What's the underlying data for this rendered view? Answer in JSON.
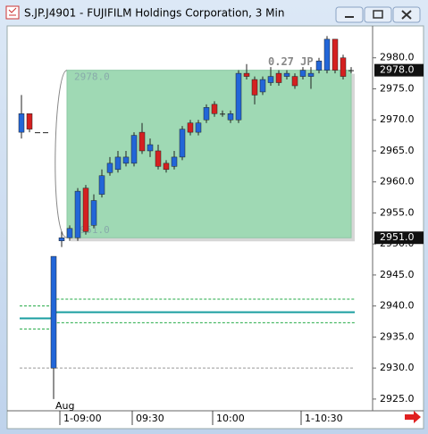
{
  "window": {
    "title": "S.JP.J4901 - FUJIFILM Holdings Corporation, 3 Min"
  },
  "chart_data": {
    "type": "candlestick",
    "categories": [
      null,
      null,
      null,
      null,
      null,
      "1-09:00",
      null,
      null,
      null,
      null,
      null,
      null,
      null,
      null,
      "09:30",
      null,
      null,
      null,
      null,
      null,
      null,
      null,
      null,
      null,
      "10:00",
      null,
      null,
      null,
      null,
      null,
      null,
      null,
      null,
      null,
      null,
      "1-10:30",
      null,
      null,
      null,
      null,
      null,
      null
    ],
    "x_sublabel": "Aug",
    "open": [
      2968,
      2971,
      2968,
      2968,
      2930,
      2950.5,
      2951,
      2951,
      2959,
      2953,
      2958,
      2961.5,
      2962,
      2963,
      2963,
      2968,
      2965,
      2965,
      2963,
      2962.5,
      2964,
      2969.5,
      2968,
      2970,
      2972.5,
      2971,
      2970,
      2970,
      2977.5,
      2976.5,
      2974.5,
      2976,
      2977.5,
      2977,
      2977,
      2977,
      2977,
      2978,
      2978,
      2983,
      2980,
      2978
    ],
    "high": [
      2974,
      2971,
      2968,
      2968,
      2948,
      2952,
      2953,
      2959,
      2959.5,
      2958,
      2962,
      2964,
      2965,
      2965,
      2968,
      2969.5,
      2967,
      2966,
      2963.5,
      2965,
      2969,
      2970,
      2970,
      2972.5,
      2973,
      2971.5,
      2971.5,
      2978,
      2979,
      2977,
      2977,
      2978.5,
      2978,
      2978,
      2977.5,
      2978.5,
      2978.5,
      2980,
      2983.5,
      2983,
      2980.5,
      2978.5
    ],
    "low": [
      2967,
      2968,
      2968,
      2968,
      2925,
      2949.5,
      2950.5,
      2950.5,
      2951.5,
      2952.5,
      2957.5,
      2961,
      2961.5,
      2962.5,
      2962.5,
      2964.5,
      2964,
      2962,
      2961.5,
      2962,
      2963.5,
      2967.5,
      2967.5,
      2969.5,
      2970.5,
      2970.5,
      2969.5,
      2969.5,
      2976.5,
      2972.5,
      2974,
      2975.5,
      2975.5,
      2976.5,
      2975,
      2976.5,
      2975,
      2977.5,
      2977.5,
      2977.5,
      2976.5,
      2977.5
    ],
    "close": [
      2971,
      2968.5,
      2968,
      2968,
      2948,
      2951,
      2952.5,
      2958.5,
      2952,
      2957,
      2961,
      2963,
      2964,
      2964,
      2967.5,
      2965,
      2966,
      2962.5,
      2962,
      2964,
      2968.5,
      2968,
      2969.5,
      2972,
      2971,
      2971,
      2971,
      2977.5,
      2977,
      2974,
      2976.5,
      2977,
      2976,
      2977.5,
      2975.5,
      2978,
      2977.5,
      2979.5,
      2983,
      2978,
      2977,
      2978
    ],
    "up_color": "#2266d8",
    "down_color": "#d42020",
    "ylim": [
      2923.4,
      2985
    ],
    "yticks": [
      {
        "value": 2925,
        "label": "2925.0"
      },
      {
        "value": 2930,
        "label": "2930.0"
      },
      {
        "value": 2935,
        "label": "2935.0"
      },
      {
        "value": 2940,
        "label": "2940.0"
      },
      {
        "value": 2945,
        "label": "2945.0"
      },
      {
        "value": 2950,
        "label": "2950.0"
      },
      {
        "value": 2955,
        "label": "2955.0"
      },
      {
        "value": 2960,
        "label": "2960.0"
      },
      {
        "value": 2965,
        "label": "2965.0"
      },
      {
        "value": 2970,
        "label": "2970.0"
      },
      {
        "value": 2975,
        "label": "2975.0"
      },
      {
        "value": 2980,
        "label": "2980.0"
      }
    ],
    "price_range": {
      "high": {
        "value": 2978,
        "label": "2978.0"
      },
      "low": {
        "value": 2951,
        "label": "2951.0"
      },
      "annotation": "0.27 JP",
      "color": "#9fd9b4"
    },
    "price_markers": [
      {
        "value": 2978,
        "label": "2978.0"
      },
      {
        "value": 2951,
        "label": "2951.0"
      }
    ],
    "bands": {
      "upper": [
        2940,
        2941.1
      ],
      "middle": [
        2938,
        2939
      ],
      "lower": [
        2936.3,
        2937.3
      ]
    },
    "reference_line": 2930
  }
}
